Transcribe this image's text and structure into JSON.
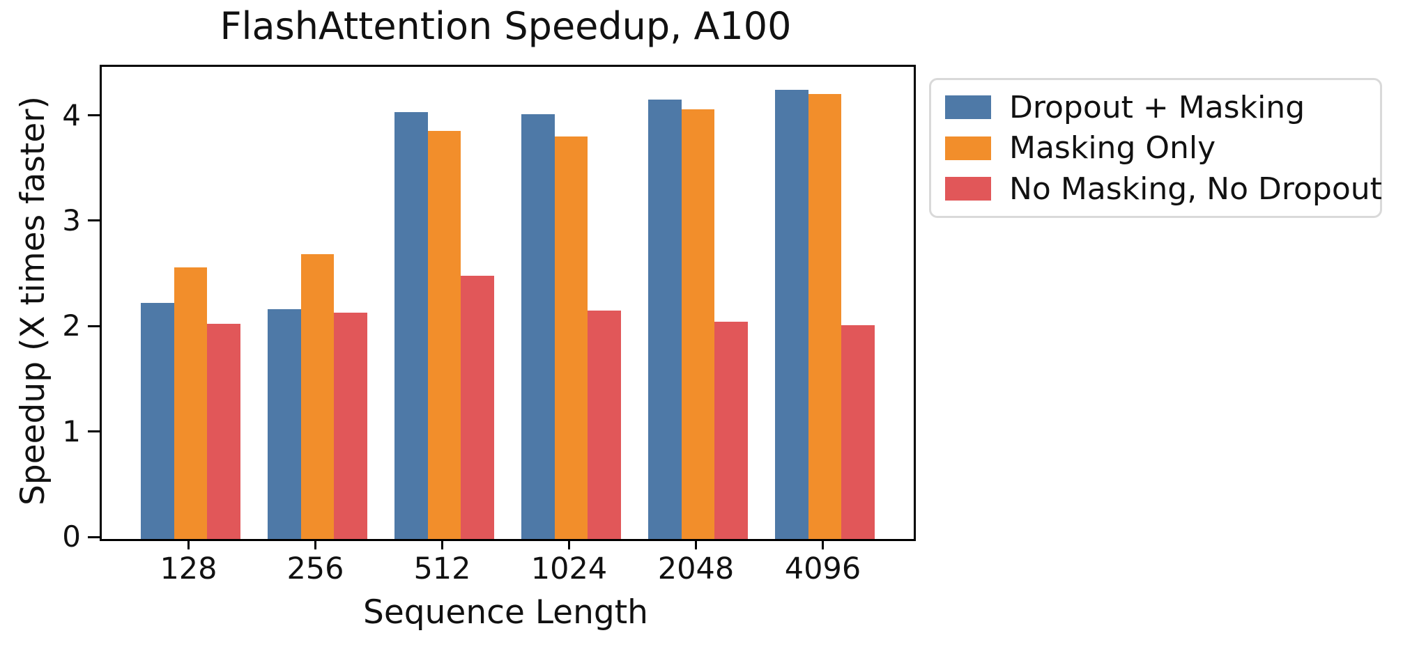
{
  "title": "FlashAttention Speedup, A100",
  "chart_data": {
    "type": "bar",
    "title": "FlashAttention Speedup, A100",
    "xlabel": "Sequence Length",
    "ylabel": "Speedup (X times faster)",
    "categories": [
      "128",
      "256",
      "512",
      "1024",
      "2048",
      "4096"
    ],
    "series": [
      {
        "name": "Dropout + Masking",
        "color": "#4E79A7",
        "values": [
          2.24,
          2.18,
          4.05,
          4.03,
          4.17,
          4.26
        ]
      },
      {
        "name": "Masking Only",
        "color": "#F28E2B",
        "values": [
          2.58,
          2.7,
          3.87,
          3.82,
          4.08,
          4.22
        ]
      },
      {
        "name": "No Masking, No Dropout",
        "color": "#E15759",
        "values": [
          2.04,
          2.15,
          2.5,
          2.17,
          2.06,
          2.03
        ]
      }
    ],
    "yticks": [
      0,
      1,
      2,
      3,
      4
    ],
    "ylim": [
      0,
      4.48
    ],
    "grid": false,
    "legend_position": "upper right, outside axes",
    "axis_color": "#000000",
    "background_color": "#ffffff"
  }
}
